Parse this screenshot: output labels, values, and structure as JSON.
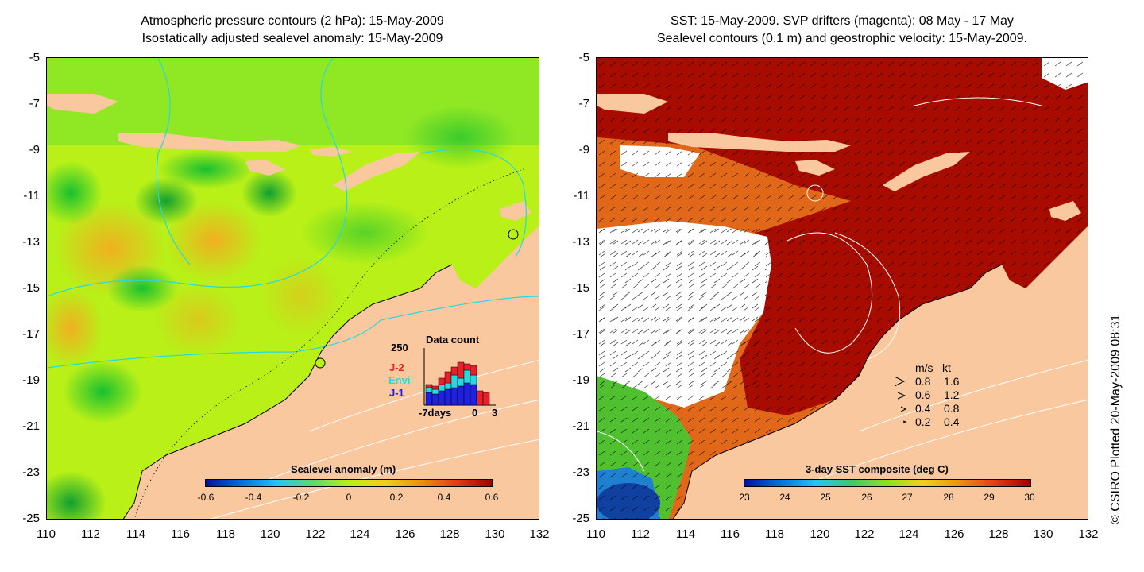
{
  "left_panel": {
    "title_line1": "Atmospheric pressure contours (2 hPa): 15-May-2009",
    "title_line2": "Isostatically adjusted sealevel anomaly: 15-May-2009",
    "colorbar": {
      "label": "Sealevel anomaly (m)",
      "ticks": [
        "-0.6",
        "-0.4",
        "-0.2",
        "0",
        "0.2",
        "0.4",
        "0.6"
      ]
    },
    "data_count": {
      "title": "Data count",
      "max_label": "250",
      "series_labels": [
        "J-2",
        "Envi",
        "J-1"
      ],
      "series_colors": [
        "#e8202a",
        "#28d8e0",
        "#2020e0"
      ],
      "x_labels": [
        "-7days",
        "0",
        "3"
      ]
    }
  },
  "right_panel": {
    "title_line1": "SST: 15-May-2009. SVP drifters (magenta): 08 May - 17 May",
    "title_line2": "Sealevel contours (0.1 m) and geostrophic velocity: 15-May-2009.",
    "colorbar": {
      "label": "3-day SST composite (deg C)",
      "ticks": [
        "23",
        "24",
        "25",
        "26",
        "27",
        "28",
        "29",
        "30"
      ]
    },
    "velocity_legend": {
      "header_ms": "m/s",
      "header_kt": "kt",
      "rows": [
        {
          "ms": "0.8",
          "kt": "1.6"
        },
        {
          "ms": "0.6",
          "kt": "1.2"
        },
        {
          "ms": "0.4",
          "kt": "0.8"
        },
        {
          "ms": "0.2",
          "kt": "0.4"
        }
      ]
    }
  },
  "axes": {
    "lat_ticks": [
      "-5",
      "-7",
      "-9",
      "-11",
      "-13",
      "-15",
      "-17",
      "-19",
      "-21",
      "-23",
      "-25"
    ],
    "lon_ticks": [
      "110",
      "112",
      "114",
      "116",
      "118",
      "120",
      "122",
      "124",
      "126",
      "128",
      "130",
      "132"
    ]
  },
  "credit": "© CSIRO Plotted 20-May-2009 08:31",
  "colors": {
    "land": "#f9c89f",
    "sla_background": "#b8f018",
    "sst_warm": "#a80c00",
    "sst_orange": "#e06818"
  }
}
